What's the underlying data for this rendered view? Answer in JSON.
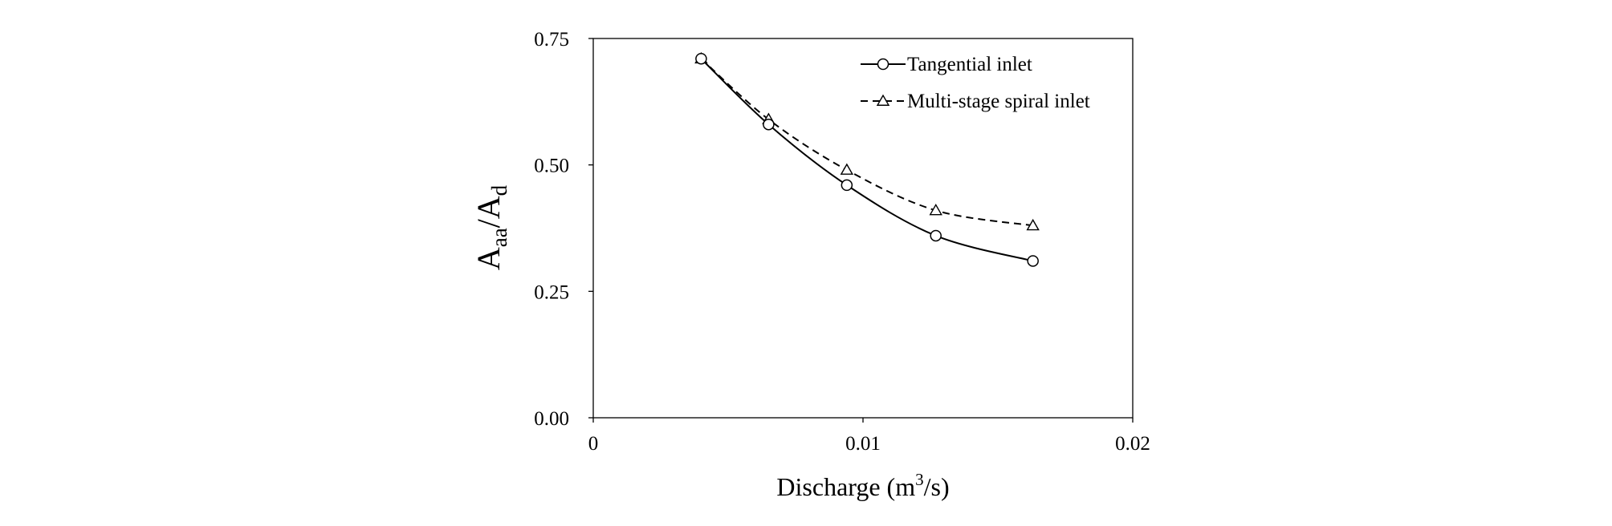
{
  "chart_data": {
    "type": "line",
    "x_ticks": [
      "0",
      "0.01",
      "0.02"
    ],
    "y_ticks": [
      "0.00",
      "0.25",
      "0.50",
      "0.75"
    ],
    "xlim": [
      0,
      0.02
    ],
    "ylim": [
      0,
      0.75
    ],
    "xlabel": {
      "main": "Discharge (m",
      "sup": "3",
      "end": "/s)"
    },
    "ylabel": {
      "a": "A",
      "sub1": "aa",
      "slash": "/A",
      "sub2": "d"
    },
    "grid": false,
    "legend_position": "top-right",
    "series": [
      {
        "name": "Tangential inlet",
        "marker": "circle",
        "line": "solid",
        "x": [
          0.004,
          0.0065,
          0.0094,
          0.0127,
          0.0163
        ],
        "y": [
          0.71,
          0.58,
          0.46,
          0.36,
          0.31
        ]
      },
      {
        "name": "Multi-stage spiral inlet",
        "marker": "triangle",
        "line": "dashed",
        "x": [
          0.004,
          0.0065,
          0.0094,
          0.0127,
          0.0163
        ],
        "y": [
          0.71,
          0.59,
          0.49,
          0.41,
          0.38
        ]
      }
    ]
  }
}
